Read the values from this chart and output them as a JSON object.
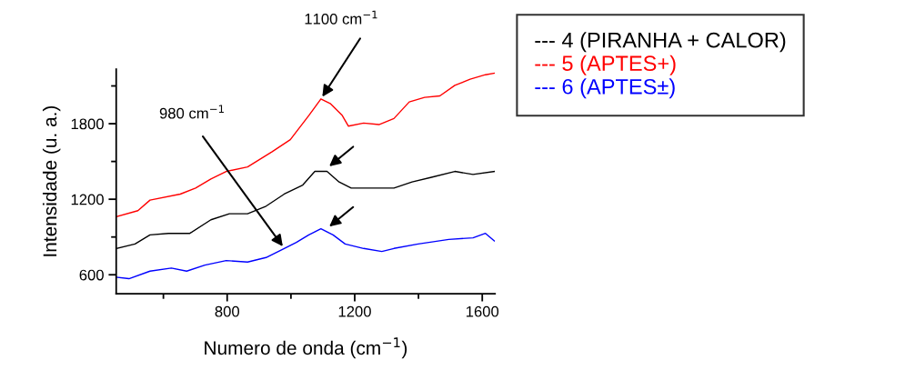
{
  "chart_data": {
    "type": "line",
    "xlabel": "Numero de onda (cm$^{−1}$)",
    "ylabel": "Intensidade (u. a.)",
    "xlim": [
      452,
      1640
    ],
    "ylim": [
      449,
      2233
    ],
    "xticks": [
      {
        "value": 600,
        "label": null
      },
      800,
      {
        "value": 1000,
        "label": null
      },
      1200,
      {
        "value": 1400,
        "label": null
      },
      1600
    ],
    "yticks": [
      600,
      {
        "value": 900,
        "label": null
      },
      1200,
      {
        "value": 1500,
        "label": null
      },
      1800,
      {
        "value": 2100,
        "label": null
      }
    ],
    "grid": false,
    "legend": "top right",
    "marker": "none",
    "line_style": "solid",
    "annotations": [
      {
        "text": "1100 cm$^{−1}$",
        "x": 1094,
        "y": 1997
      },
      {
        "text": "980 cm$^{−1}$",
        "x": 979,
        "y": 809
      }
    ],
    "series": [
      {
        "name": "--- 4 (PIRANHA + CALOR)",
        "color": "#000000",
        "x": [
          452,
          511,
          558,
          616,
          683,
          749,
          807,
          864,
          922,
          979,
          1037,
          1075,
          1113,
          1151,
          1189,
          1247,
          1323,
          1380,
          1438,
          1514,
          1571,
          1638
        ],
        "values": [
          809,
          845,
          917,
          929,
          929,
          1037,
          1085,
          1085,
          1145,
          1241,
          1313,
          1421,
          1421,
          1337,
          1289,
          1289,
          1289,
          1337,
          1373,
          1421,
          1397,
          1421
        ]
      },
      {
        "name": "--- 5 (APTES+)",
        "color": "#ff0000",
        "x": [
          452,
          520,
          558,
          653,
          701,
          749,
          797,
          864,
          941,
          998,
          1056,
          1094,
          1123,
          1161,
          1180,
          1228,
          1276,
          1323,
          1371,
          1419,
          1467,
          1514,
          1562,
          1610,
          1638
        ],
        "values": [
          1061,
          1109,
          1193,
          1241,
          1289,
          1361,
          1421,
          1457,
          1577,
          1673,
          1865,
          1997,
          1961,
          1865,
          1781,
          1805,
          1793,
          1841,
          1973,
          2009,
          2021,
          2105,
          2153,
          2189,
          2201
        ]
      },
      {
        "name": "--- 6 (APTES±)",
        "color": "#0000ff",
        "x": [
          452,
          492,
          558,
          625,
          673,
          730,
          797,
          864,
          922,
          979,
          1017,
          1056,
          1094,
          1132,
          1170,
          1228,
          1285,
          1323,
          1399,
          1495,
          1571,
          1610,
          1638
        ],
        "values": [
          581,
          569,
          629,
          653,
          629,
          677,
          713,
          701,
          737,
          809,
          857,
          917,
          965,
          917,
          845,
          809,
          785,
          809,
          845,
          881,
          893,
          929,
          869
        ]
      }
    ]
  }
}
